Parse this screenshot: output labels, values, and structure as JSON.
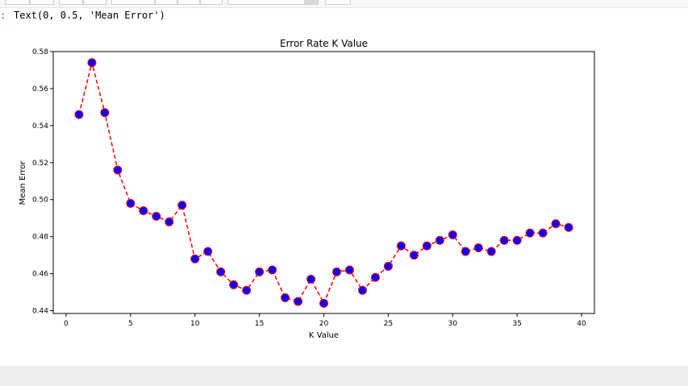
{
  "output": {
    "prompt": ":",
    "text": "Text(0, 0.5, 'Mean Error')"
  },
  "chart_data": {
    "type": "line",
    "title": "Error Rate K Value",
    "xlabel": "K Value",
    "ylabel": "Mean Error",
    "xlim": [
      -1,
      41
    ],
    "ylim": [
      0.4385,
      0.58
    ],
    "xticks": [
      0,
      5,
      10,
      15,
      20,
      25,
      30,
      35,
      40
    ],
    "yticks": [
      0.44,
      0.46,
      0.48,
      0.5,
      0.52,
      0.54,
      0.56,
      0.58
    ],
    "ytick_labels": [
      "0.44",
      "0.46",
      "0.48",
      "0.50",
      "0.52",
      "0.54",
      "0.56",
      "0.58"
    ],
    "line_color": "#ff0000",
    "line_style": "dashed",
    "marker_face": "#0000ff",
    "marker_edge": "#ff0000",
    "x": [
      1,
      2,
      3,
      4,
      5,
      6,
      7,
      8,
      9,
      10,
      11,
      12,
      13,
      14,
      15,
      16,
      17,
      18,
      19,
      20,
      21,
      22,
      23,
      24,
      25,
      26,
      27,
      28,
      29,
      30,
      31,
      32,
      33,
      34,
      35,
      36,
      37,
      38,
      39
    ],
    "y": [
      0.546,
      0.574,
      0.547,
      0.516,
      0.498,
      0.494,
      0.491,
      0.488,
      0.497,
      0.468,
      0.472,
      0.461,
      0.454,
      0.451,
      0.461,
      0.462,
      0.447,
      0.445,
      0.457,
      0.444,
      0.461,
      0.462,
      0.451,
      0.458,
      0.464,
      0.475,
      0.47,
      0.475,
      0.478,
      0.481,
      0.472,
      0.474,
      0.472,
      0.478,
      0.478,
      0.482,
      0.482,
      0.487,
      0.485
    ]
  }
}
